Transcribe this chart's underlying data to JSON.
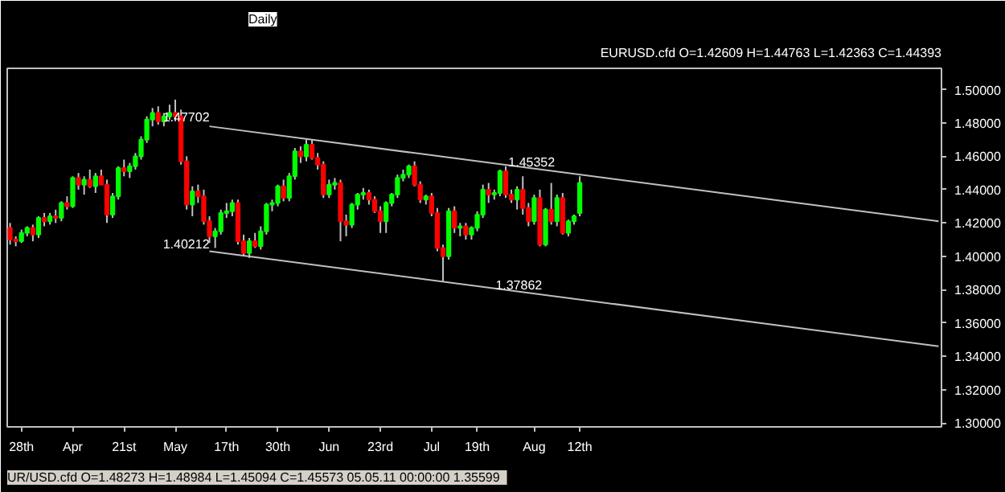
{
  "chart_data": {
    "type": "candlestick",
    "title": "EURUSD.cfd O=1.42609 H=1.44763 L=1.42363 C=1.44393",
    "categories": [
      null,
      null,
      "28th",
      null,
      null,
      null,
      null,
      null,
      null,
      null,
      null,
      "Apr",
      null,
      null,
      null,
      null,
      null,
      null,
      null,
      null,
      "21st",
      null,
      null,
      null,
      null,
      null,
      null,
      null,
      null,
      "May",
      null,
      null,
      null,
      null,
      null,
      null,
      null,
      null,
      "17th",
      null,
      null,
      null,
      null,
      null,
      null,
      null,
      null,
      "30th",
      null,
      null,
      null,
      null,
      null,
      null,
      null,
      null,
      "Jun",
      null,
      null,
      null,
      null,
      null,
      null,
      null,
      null,
      "23rd",
      null,
      null,
      null,
      null,
      null,
      null,
      null,
      null,
      "Jul",
      null,
      null,
      null,
      null,
      null,
      null,
      null,
      "19th",
      null,
      null,
      null,
      null,
      null,
      null,
      null,
      null,
      null,
      "Aug",
      null,
      null,
      null,
      null,
      null,
      null,
      null,
      "12th",
      null,
      null,
      null,
      null,
      null,
      null,
      null,
      null,
      null,
      null,
      null,
      null,
      null,
      null,
      null,
      null,
      null,
      null,
      null,
      null,
      null,
      null,
      null,
      null,
      null,
      null,
      null,
      null,
      null,
      null,
      null,
      null,
      null,
      null,
      null,
      null,
      null,
      null,
      null,
      null,
      null,
      null,
      null,
      null,
      null,
      null,
      null,
      null,
      null,
      null,
      null,
      null,
      null,
      null,
      null,
      null,
      null,
      null,
      null,
      null,
      null,
      null,
      null
    ],
    "ohlc": [
      [
        1.417,
        1.42,
        1.407,
        1.41
      ],
      [
        1.41,
        1.412,
        1.406,
        1.409
      ],
      [
        1.409,
        1.416,
        1.408,
        1.414
      ],
      [
        1.414,
        1.418,
        1.412,
        1.417
      ],
      [
        1.417,
        1.419,
        1.409,
        1.413
      ],
      [
        1.413,
        1.424,
        1.411,
        1.423
      ],
      [
        1.423,
        1.426,
        1.418,
        1.421
      ],
      [
        1.421,
        1.426,
        1.419,
        1.424
      ],
      [
        1.424,
        1.428,
        1.42,
        1.423
      ],
      [
        1.423,
        1.433,
        1.421,
        1.432
      ],
      [
        1.432,
        1.436,
        1.428,
        1.43
      ],
      [
        1.43,
        1.448,
        1.429,
        1.447
      ],
      [
        1.447,
        1.45,
        1.44,
        1.443
      ],
      [
        1.443,
        1.448,
        1.437,
        1.446
      ],
      [
        1.446,
        1.452,
        1.441,
        1.442
      ],
      [
        1.442,
        1.45,
        1.438,
        1.448
      ],
      [
        1.448,
        1.452,
        1.443,
        1.443
      ],
      [
        1.443,
        1.446,
        1.42,
        1.425
      ],
      [
        1.425,
        1.438,
        1.423,
        1.436
      ],
      [
        1.436,
        1.454,
        1.434,
        1.453
      ],
      [
        1.453,
        1.458,
        1.448,
        1.451
      ],
      [
        1.451,
        1.456,
        1.447,
        1.454
      ],
      [
        1.454,
        1.462,
        1.452,
        1.46
      ],
      [
        1.46,
        1.472,
        1.458,
        1.47
      ],
      [
        1.47,
        1.484,
        1.468,
        1.482
      ],
      [
        1.482,
        1.489,
        1.478,
        1.486
      ],
      [
        1.486,
        1.49,
        1.479,
        1.481
      ],
      [
        1.481,
        1.486,
        1.478,
        1.484
      ],
      [
        1.484,
        1.491,
        1.482,
        1.486
      ],
      [
        1.486,
        1.494,
        1.481,
        1.484
      ],
      [
        1.484,
        1.488,
        1.455,
        1.457
      ],
      [
        1.457,
        1.46,
        1.428,
        1.431
      ],
      [
        1.431,
        1.442,
        1.424,
        1.439
      ],
      [
        1.439,
        1.443,
        1.432,
        1.436
      ],
      [
        1.436,
        1.44,
        1.419,
        1.421
      ],
      [
        1.421,
        1.424,
        1.408,
        1.412
      ],
      [
        1.412,
        1.417,
        1.405,
        1.415
      ],
      [
        1.415,
        1.428,
        1.413,
        1.426
      ],
      [
        1.426,
        1.432,
        1.423,
        1.427
      ],
      [
        1.427,
        1.434,
        1.424,
        1.432
      ],
      [
        1.432,
        1.434,
        1.407,
        1.409
      ],
      [
        1.409,
        1.413,
        1.4,
        1.402
      ],
      [
        1.402,
        1.411,
        1.399,
        1.409
      ],
      [
        1.409,
        1.414,
        1.405,
        1.406
      ],
      [
        1.406,
        1.418,
        1.404,
        1.415
      ],
      [
        1.415,
        1.432,
        1.413,
        1.431
      ],
      [
        1.431,
        1.434,
        1.427,
        1.432
      ],
      [
        1.432,
        1.443,
        1.43,
        1.442
      ],
      [
        1.442,
        1.446,
        1.433,
        1.435
      ],
      [
        1.435,
        1.45,
        1.433,
        1.448
      ],
      [
        1.448,
        1.465,
        1.446,
        1.463
      ],
      [
        1.463,
        1.466,
        1.456,
        1.46
      ],
      [
        1.46,
        1.47,
        1.457,
        1.467
      ],
      [
        1.467,
        1.47,
        1.458,
        1.459
      ],
      [
        1.459,
        1.462,
        1.452,
        1.455
      ],
      [
        1.455,
        1.457,
        1.435,
        1.437
      ],
      [
        1.437,
        1.446,
        1.435,
        1.443
      ],
      [
        1.443,
        1.447,
        1.44,
        1.444
      ],
      [
        1.444,
        1.446,
        1.409,
        1.421
      ],
      [
        1.421,
        1.425,
        1.412,
        1.419
      ],
      [
        1.419,
        1.432,
        1.417,
        1.431
      ],
      [
        1.431,
        1.438,
        1.428,
        1.437
      ],
      [
        1.437,
        1.441,
        1.434,
        1.438
      ],
      [
        1.438,
        1.44,
        1.431,
        1.434
      ],
      [
        1.434,
        1.436,
        1.426,
        1.427
      ],
      [
        1.427,
        1.43,
        1.414,
        1.421
      ],
      [
        1.421,
        1.433,
        1.414,
        1.432
      ],
      [
        1.432,
        1.438,
        1.43,
        1.437
      ],
      [
        1.437,
        1.449,
        1.435,
        1.447
      ],
      [
        1.447,
        1.452,
        1.445,
        1.449
      ],
      [
        1.449,
        1.455,
        1.447,
        1.454
      ],
      [
        1.454,
        1.457,
        1.442,
        1.443
      ],
      [
        1.443,
        1.445,
        1.432,
        1.434
      ],
      [
        1.434,
        1.437,
        1.431,
        1.436
      ],
      [
        1.436,
        1.438,
        1.424,
        1.426
      ],
      [
        1.426,
        1.429,
        1.403,
        1.405
      ],
      [
        1.405,
        1.407,
        1.385,
        1.4
      ],
      [
        1.4,
        1.429,
        1.398,
        1.427
      ],
      [
        1.427,
        1.43,
        1.414,
        1.417
      ],
      [
        1.417,
        1.42,
        1.412,
        1.418
      ],
      [
        1.418,
        1.42,
        1.41,
        1.413
      ],
      [
        1.413,
        1.418,
        1.41,
        1.417
      ],
      [
        1.417,
        1.427,
        1.415,
        1.425
      ],
      [
        1.425,
        1.443,
        1.423,
        1.44
      ],
      [
        1.44,
        1.444,
        1.432,
        1.437
      ],
      [
        1.437,
        1.44,
        1.434,
        1.438
      ],
      [
        1.438,
        1.452,
        1.436,
        1.451
      ],
      [
        1.451,
        1.454,
        1.435,
        1.437
      ],
      [
        1.437,
        1.44,
        1.432,
        1.434
      ],
      [
        1.434,
        1.442,
        1.428,
        1.44
      ],
      [
        1.44,
        1.448,
        1.425,
        1.429
      ],
      [
        1.429,
        1.432,
        1.418,
        1.421
      ],
      [
        1.421,
        1.437,
        1.419,
        1.435
      ],
      [
        1.435,
        1.44,
        1.406,
        1.407
      ],
      [
        1.407,
        1.429,
        1.406,
        1.428
      ],
      [
        1.428,
        1.444,
        1.419,
        1.421
      ],
      [
        1.421,
        1.437,
        1.418,
        1.435
      ],
      [
        1.435,
        1.438,
        1.413,
        1.414
      ],
      [
        1.414,
        1.422,
        1.412,
        1.421
      ],
      [
        1.421,
        1.425,
        1.419,
        1.424
      ],
      [
        1.426,
        1.448,
        1.424,
        1.444
      ],
      null,
      null,
      null,
      null,
      null,
      null,
      null,
      null,
      null,
      null,
      null,
      null,
      null,
      null,
      null,
      null,
      null,
      null,
      null,
      null,
      null,
      null,
      null,
      null,
      null,
      null,
      null,
      null,
      null,
      null,
      null,
      null,
      null,
      null,
      null,
      null,
      null,
      null,
      null,
      null,
      null,
      null,
      null,
      null,
      null,
      null,
      null,
      null,
      null,
      null,
      null,
      null,
      null,
      null,
      null,
      null,
      null,
      null,
      null,
      null,
      null,
      null,
      null
    ],
    "colors": [
      "#ff0000",
      "#ff0000",
      "#00ff00",
      "#00ff00",
      "#ff0000",
      "#00ff00",
      "#ff0000",
      "#00ff00",
      "#ff0000",
      "#00ff00",
      "#ff0000",
      "#00ff00",
      "#ff0000",
      "#00ff00",
      "#ff0000",
      "#00ff00",
      "#ff0000",
      "#ff0000",
      "#00ff00",
      "#00ff00",
      "#ff0000",
      "#00ff00",
      "#00ff00",
      "#00ff00",
      "#00ff00",
      "#00ff00",
      "#ff0000",
      "#00ff00",
      "#00ff00",
      "#ff0000",
      "#ff0000",
      "#ff0000",
      "#00ff00",
      "#ff0000",
      "#ff0000",
      "#ff0000",
      "#00ff00",
      "#00ff00",
      "#00ff00",
      "#00ff00",
      "#ff0000",
      "#ff0000",
      "#00ff00",
      "#ff0000",
      "#00ff00",
      "#00ff00",
      "#00ff00",
      "#00ff00",
      "#ff0000",
      "#00ff00",
      "#00ff00",
      "#ff0000",
      "#00ff00",
      "#ff0000",
      "#ff0000",
      "#ff0000",
      "#00ff00",
      "#00ff00",
      "#ff0000",
      "#ff0000",
      "#00ff00",
      "#00ff00",
      "#00ff00",
      "#ff0000",
      "#ff0000",
      "#ff0000",
      "#00ff00",
      "#00ff00",
      "#00ff00",
      "#00ff00",
      "#00ff00",
      "#ff0000",
      "#ff0000",
      "#00ff00",
      "#ff0000",
      "#ff0000",
      "#ff0000",
      "#00ff00",
      "#ff0000",
      "#00ff00",
      "#ff0000",
      "#00ff00",
      "#00ff00",
      "#00ff00",
      "#ff0000",
      "#00ff00",
      "#00ff00",
      "#ff0000",
      "#ff0000",
      "#00ff00",
      "#ff0000",
      "#ff0000",
      "#00ff00",
      "#ff0000",
      "#00ff00",
      "#ff0000",
      "#00ff00",
      "#ff0000",
      "#00ff00",
      "#00ff00",
      "#00ff00",
      null,
      null,
      null,
      null,
      null,
      null,
      null,
      null,
      null,
      null,
      null,
      null,
      null,
      null,
      null,
      null,
      null,
      null,
      null,
      null,
      null,
      null,
      null,
      null,
      null,
      null,
      null,
      null,
      null,
      null,
      null,
      null,
      null,
      null,
      null,
      null,
      null,
      null,
      null,
      null,
      null,
      null,
      null,
      null,
      null,
      null,
      null,
      null,
      null,
      null,
      null,
      null,
      null,
      null,
      null,
      null,
      null,
      null,
      null,
      null,
      null,
      null,
      null
    ],
    "series": [
      {
        "type": "line",
        "color": "#c0c0c0",
        "values": [
          null,
          null,
          null,
          null,
          null,
          null,
          null,
          null,
          null,
          null,
          null,
          null,
          null,
          null,
          null,
          null,
          null,
          null,
          null,
          null,
          null,
          null,
          null,
          null,
          null,
          null,
          null,
          null,
          null,
          null,
          null,
          null,
          null,
          null,
          null,
          1.478,
          null,
          null,
          null,
          null,
          null,
          null,
          null,
          null,
          null,
          null,
          null,
          null,
          null,
          null,
          null,
          null,
          null,
          null,
          null,
          null,
          null,
          null,
          null,
          null,
          null,
          null,
          null,
          null,
          null,
          null,
          null,
          null,
          null,
          null,
          null,
          null,
          null,
          null,
          null,
          null,
          null,
          null,
          null,
          null,
          null,
          null,
          null,
          null,
          null,
          null,
          null,
          null,
          null,
          null,
          null,
          null,
          null,
          null,
          null,
          null,
          null,
          null,
          null,
          null,
          null,
          null,
          null,
          null,
          null,
          null,
          null,
          null,
          null,
          null,
          null,
          null,
          null,
          null,
          null,
          null,
          null,
          null,
          null,
          null,
          null,
          null,
          null,
          null,
          null,
          null,
          null,
          null,
          null,
          null,
          null,
          null,
          null,
          null,
          null,
          null,
          null,
          null,
          null,
          null,
          null,
          null,
          null,
          null,
          null,
          null,
          null,
          null,
          null,
          null,
          null,
          null,
          null,
          null,
          null,
          null,
          null,
          null,
          null,
          null,
          null,
          null,
          null,
          1.421
        ]
      },
      {
        "type": "line",
        "color": "#c0c0c0",
        "values": [
          null,
          null,
          null,
          null,
          null,
          null,
          null,
          null,
          null,
          null,
          null,
          null,
          null,
          null,
          null,
          null,
          null,
          null,
          null,
          null,
          null,
          null,
          null,
          null,
          null,
          null,
          null,
          null,
          null,
          null,
          null,
          null,
          null,
          null,
          null,
          1.403,
          null,
          null,
          null,
          null,
          null,
          null,
          null,
          null,
          null,
          null,
          null,
          null,
          null,
          null,
          null,
          null,
          null,
          null,
          null,
          null,
          null,
          null,
          null,
          null,
          null,
          null,
          null,
          null,
          null,
          null,
          null,
          null,
          null,
          null,
          null,
          null,
          null,
          null,
          null,
          null,
          null,
          null,
          null,
          null,
          null,
          null,
          null,
          null,
          null,
          null,
          null,
          null,
          null,
          null,
          null,
          null,
          null,
          null,
          null,
          null,
          null,
          null,
          null,
          null,
          null,
          null,
          null,
          null,
          null,
          null,
          null,
          null,
          null,
          null,
          null,
          null,
          null,
          null,
          null,
          null,
          null,
          null,
          null,
          null,
          null,
          null,
          null,
          null,
          null,
          null,
          null,
          null,
          null,
          null,
          null,
          null,
          null,
          null,
          null,
          null,
          null,
          null,
          null,
          null,
          null,
          null,
          null,
          null,
          null,
          null,
          null,
          null,
          null,
          null,
          null,
          null,
          null,
          null,
          null,
          null,
          null,
          null,
          null,
          null,
          null,
          null,
          null,
          1.346
        ]
      }
    ],
    "ylim": [
      1.2976,
      1.5128
    ],
    "yticks": [
      {
        "value": 1.3,
        "label": "1.30000"
      },
      {
        "value": 1.32,
        "label": "1.32000"
      },
      {
        "value": 1.34,
        "label": "1.34000"
      },
      {
        "value": 1.36,
        "label": "1.36000"
      },
      {
        "value": 1.38,
        "label": "1.38000"
      },
      {
        "value": 1.4,
        "label": "1.40000"
      },
      {
        "value": 1.42,
        "label": "1.42000"
      },
      {
        "value": 1.44,
        "label": "1.44000"
      },
      {
        "value": 1.46,
        "label": "1.46000"
      },
      {
        "value": 1.48,
        "label": "1.48000"
      },
      {
        "value": 1.5,
        "label": "1.50000"
      }
    ],
    "annotations": [
      {
        "text": "1.47702",
        "y": 1.478
      },
      "1.40212",
      {
        "text": "1.45352",
        "y": 1.451
      },
      {
        "text": "1.37862",
        "y": 1.377
      },
      "UR/USD.cfd O=1.48273 H=1.48984 L=1.45094 C=1.45573   05.05.11 00:00:00 1.35599",
      "Daily"
    ],
    "grid": false
  }
}
